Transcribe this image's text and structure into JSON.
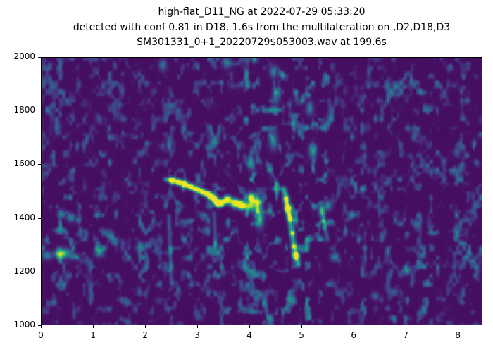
{
  "title": {
    "line1": "high-flat_D11_NG at 2022-07-29 05:33:20",
    "line2": "detected with conf 0.81 in D18, 1.6s from the multilateration on ,D2,D18,D3",
    "line3": "SM301331_0+1_20220729$053003.wav at 199.6s"
  },
  "chart_data": {
    "type": "heatmap",
    "subtype": "spectrogram",
    "colormap": "viridis",
    "title": "high-flat_D11_NG at 2022-07-29 05:33:20 / detected with conf 0.81 in D18, 1.6s from the multilateration on ,D2,D18,D3 / SM301331_0+1_20220729$053003.wav at 199.6s",
    "xlabel": "",
    "ylabel": "",
    "xlim": [
      0,
      8.47
    ],
    "ylim": [
      1000,
      2000
    ],
    "xticks": [
      0,
      1,
      2,
      3,
      4,
      5,
      6,
      7,
      8
    ],
    "yticks": [
      1000,
      1200,
      1400,
      1600,
      1800,
      2000
    ],
    "grid": false,
    "legend": false,
    "background_value": 0.045,
    "colormap_stops": [
      [
        0.0,
        68,
        1,
        84
      ],
      [
        0.1,
        72,
        36,
        117
      ],
      [
        0.2,
        64,
        67,
        135
      ],
      [
        0.3,
        52,
        94,
        141
      ],
      [
        0.4,
        41,
        120,
        142
      ],
      [
        0.5,
        32,
        144,
        140
      ],
      [
        0.6,
        34,
        167,
        132
      ],
      [
        0.7,
        66,
        190,
        113
      ],
      [
        0.8,
        121,
        209,
        81
      ],
      [
        0.9,
        189,
        222,
        38
      ],
      [
        1.0,
        253,
        231,
        37
      ]
    ],
    "noise": {
      "seed": 11,
      "cell_x": 4.4,
      "cell_y": 6.2,
      "threshold": 0.52,
      "gain": 0.55,
      "base_weight": 0.5,
      "columns": [
        [
          0.35,
          0.3,
          0.4
        ],
        [
          1.1,
          0.18,
          0.22
        ],
        [
          1.6,
          0.3,
          0.15
        ],
        [
          1.95,
          0.2,
          0.25
        ],
        [
          2.5,
          0.1,
          0.28
        ],
        [
          2.8,
          0.25,
          0.2
        ],
        [
          3.35,
          0.18,
          0.4
        ],
        [
          3.7,
          0.15,
          0.3
        ],
        [
          4.05,
          0.16,
          0.75
        ],
        [
          4.5,
          0.2,
          0.7
        ],
        [
          4.85,
          0.12,
          0.5
        ],
        [
          5.2,
          0.2,
          0.75
        ],
        [
          5.5,
          0.12,
          0.35
        ],
        [
          6.1,
          0.25,
          0.22
        ],
        [
          6.9,
          0.3,
          0.28
        ],
        [
          7.4,
          0.25,
          0.3
        ],
        [
          8.2,
          0.3,
          0.28
        ]
      ],
      "rows": [
        [
          1380,
          230,
          0.22
        ]
      ]
    },
    "features": {
      "contours": [
        {
          "name": "whistle-downsweep",
          "points": [
            [
              2.38,
              1548,
              0.55,
              3.2
            ],
            [
              2.5,
              1544,
              0.82,
              4.0
            ],
            [
              2.62,
              1538,
              0.88,
              4.2
            ],
            [
              2.74,
              1530,
              0.78,
              4.2
            ],
            [
              2.86,
              1520,
              0.85,
              4.2
            ],
            [
              2.98,
              1509,
              0.9,
              4.4
            ],
            [
              3.1,
              1498,
              0.8,
              4.4
            ],
            [
              3.2,
              1489,
              0.85,
              4.6
            ],
            [
              3.3,
              1474,
              0.9,
              5.0
            ],
            [
              3.37,
              1457,
              0.88,
              5.0
            ],
            [
              3.46,
              1460,
              0.66,
              4.6
            ],
            [
              3.56,
              1468,
              0.55,
              5.5
            ],
            [
              3.7,
              1458,
              0.55,
              6.0
            ],
            [
              3.84,
              1449,
              0.6,
              6.0
            ],
            [
              3.98,
              1444,
              0.6,
              6.5
            ]
          ]
        },
        {
          "name": "vertical-spike-descender",
          "points": [
            [
              4.66,
              1512,
              0.45,
              3.5
            ],
            [
              4.7,
              1472,
              0.65,
              4.0
            ],
            [
              4.735,
              1438,
              0.88,
              4.5
            ],
            [
              4.77,
              1398,
              0.62,
              4.0
            ],
            [
              4.81,
              1345,
              0.52,
              3.8
            ],
            [
              4.85,
              1296,
              0.58,
              4.0
            ],
            [
              4.89,
              1262,
              0.8,
              4.5
            ],
            [
              4.925,
              1230,
              0.6,
              3.8
            ]
          ]
        },
        {
          "name": "short-descender",
          "points": [
            [
              5.4,
              1416,
              0.42,
              3.0
            ],
            [
              5.44,
              1365,
              0.34,
              3.0
            ],
            [
              5.49,
              1322,
              0.26,
              3.0
            ]
          ]
        },
        {
          "name": "faint-streak-a",
          "points": [
            [
              2.44,
              1408,
              0.26,
              2.8
            ],
            [
              2.46,
              1290,
              0.24,
              2.8
            ],
            [
              2.49,
              1160,
              0.2,
              2.8
            ]
          ]
        },
        {
          "name": "faint-streak-b",
          "points": [
            [
              3.3,
              1420,
              0.24,
              2.8
            ],
            [
              3.33,
              1300,
              0.2,
              2.8
            ]
          ]
        }
      ],
      "blobs": [
        [
          0.1,
          1262,
          0.4,
          0.1,
          16
        ],
        [
          0.3,
          1268,
          0.36,
          0.08,
          14
        ],
        [
          0.45,
          1270,
          0.62,
          0.1,
          18
        ],
        [
          0.62,
          1258,
          0.36,
          0.08,
          13
        ],
        [
          1.1,
          1272,
          0.45,
          0.08,
          15
        ],
        [
          1.32,
          1338,
          0.33,
          0.07,
          13
        ],
        [
          1.9,
          1290,
          0.42,
          0.09,
          15
        ],
        [
          2.04,
          1302,
          0.3,
          0.06,
          12
        ],
        [
          0.38,
          1418,
          0.36,
          0.07,
          15
        ],
        [
          0.56,
          1402,
          0.4,
          0.08,
          16
        ],
        [
          0.3,
          1742,
          0.33,
          0.06,
          24
        ],
        [
          2.32,
          1972,
          0.38,
          0.07,
          20
        ],
        [
          3.55,
          1982,
          0.42,
          0.09,
          20
        ],
        [
          2.62,
          1800,
          0.3,
          0.06,
          16
        ],
        [
          4.02,
          1608,
          0.38,
          0.07,
          26
        ],
        [
          4.45,
          1692,
          0.4,
          0.08,
          34
        ],
        [
          4.5,
          1856,
          0.35,
          0.07,
          30
        ],
        [
          5.2,
          1652,
          0.4,
          0.07,
          28
        ],
        [
          5.15,
          1812,
          0.35,
          0.07,
          26
        ],
        [
          4.45,
          1948,
          0.35,
          0.07,
          22
        ],
        [
          5.62,
          1255,
          0.4,
          0.08,
          15
        ],
        [
          7.0,
          1205,
          0.4,
          0.08,
          15
        ],
        [
          7.3,
          1262,
          0.34,
          0.07,
          13
        ],
        [
          6.4,
          1112,
          0.3,
          0.07,
          13
        ],
        [
          5.5,
          1448,
          0.42,
          0.07,
          18
        ],
        [
          5.38,
          1430,
          0.65,
          0.06,
          20
        ],
        [
          4.12,
          1455,
          0.7,
          0.1,
          32
        ],
        [
          4.18,
          1402,
          0.5,
          0.09,
          36
        ],
        [
          4.0,
          1472,
          0.45,
          0.08,
          26
        ]
      ]
    }
  },
  "layout_colors": {
    "figure_background": "#ffffff",
    "axis_color": "#000000",
    "text_color": "#000000"
  }
}
